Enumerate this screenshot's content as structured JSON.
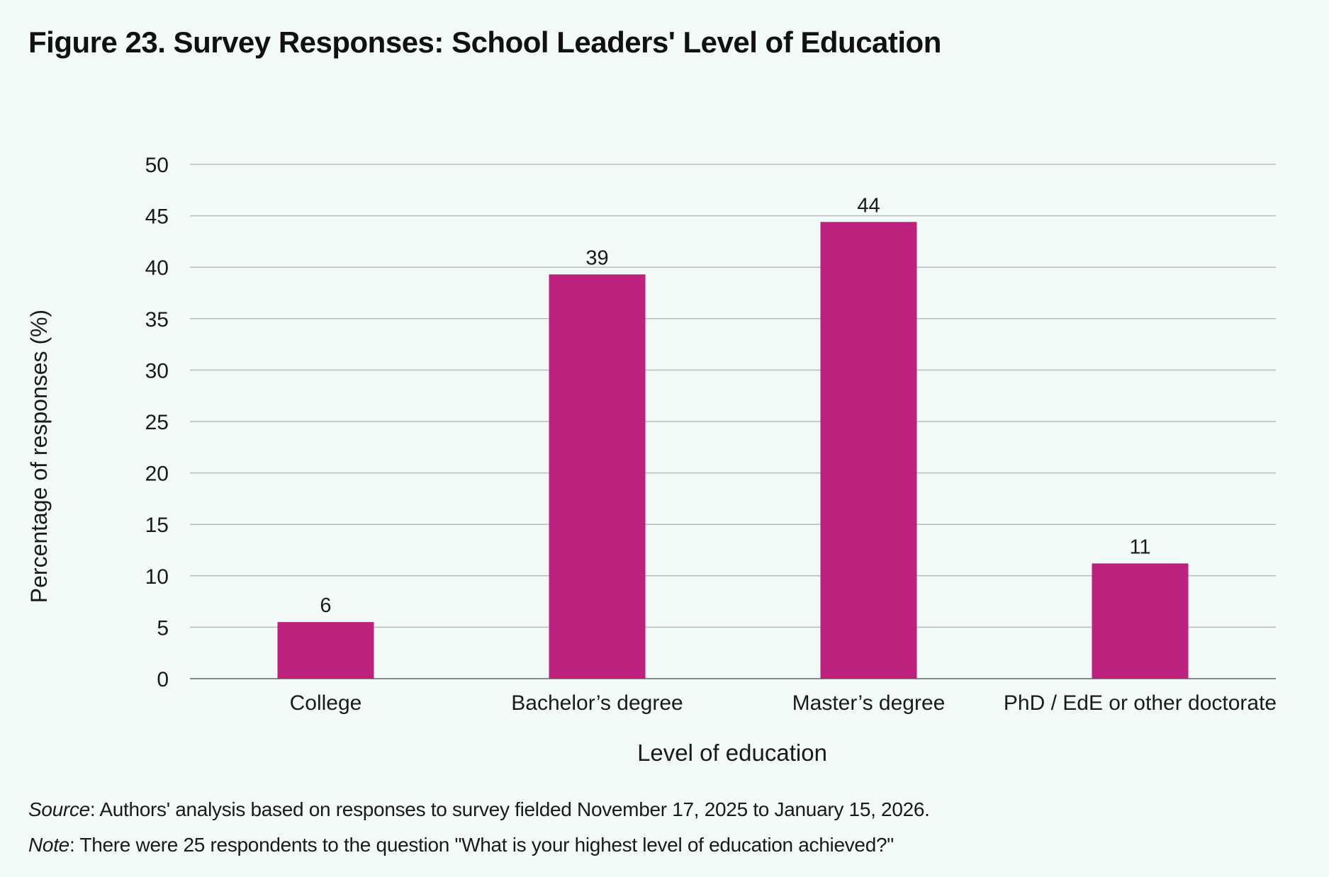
{
  "figure": {
    "title": "Figure 23. Survey Responses: School Leaders' Level of Education"
  },
  "chart_data": {
    "type": "bar",
    "categories": [
      "College",
      "Bachelor’s degree",
      "Master’s degree",
      "PhD / EdE or other doctorate"
    ],
    "values": [
      5.5,
      39.3,
      44.4,
      11.2
    ],
    "data_labels": [
      "6",
      "39",
      "44",
      "11"
    ],
    "xlabel": "Level of education",
    "ylabel": "Percentage of responses (%)",
    "ylim": [
      0,
      50
    ],
    "yticks": [
      0,
      5,
      10,
      15,
      20,
      25,
      30,
      35,
      40,
      45,
      50
    ],
    "grid": true,
    "bar_color": "#bb217d"
  },
  "footnotes": {
    "source_label": "Source",
    "source_text": ": Authors' analysis based on responses to survey fielded November 17, 2025 to January 15, 2026.",
    "note_label": "Note",
    "note_text": ": There were 25 respondents to the question \"What is your highest level of education achieved?\""
  }
}
